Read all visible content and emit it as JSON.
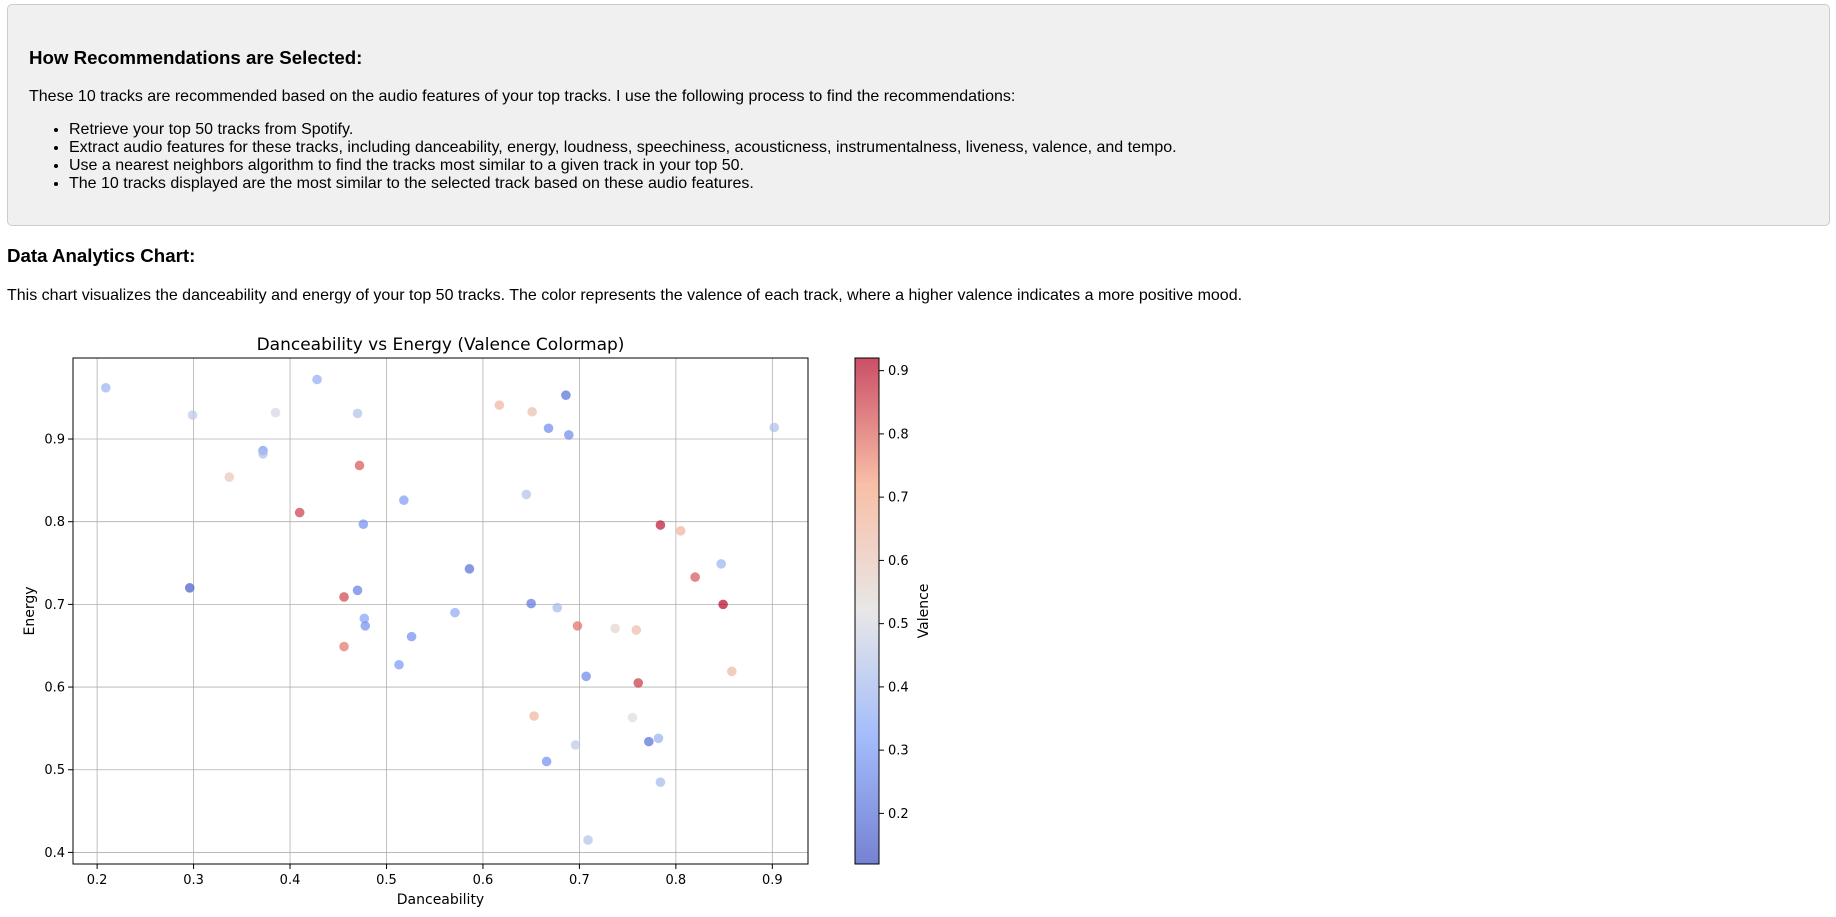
{
  "info": {
    "title": "How Recommendations are Selected:",
    "intro": "These 10 tracks are recommended based on the audio features of your top tracks. I use the following process to find the recommendations:",
    "steps": [
      "Retrieve your top 50 tracks from Spotify.",
      "Extract audio features for these tracks, including danceability, energy, loudness, speechiness, acousticness, instrumentalness, liveness, valence, and tempo.",
      "Use a nearest neighbors algorithm to find the tracks most similar to a given track in your top 50.",
      "The 10 tracks displayed are the most similar to the selected track based on these audio features."
    ]
  },
  "section": {
    "title": "Data Analytics Chart:",
    "description": "This chart visualizes the danceability and energy of your top 50 tracks. The color represents the valence of each track, where a higher valence indicates a more positive mood."
  },
  "chart_data": {
    "type": "scatter",
    "title": "Danceability vs Energy (Valence Colormap)",
    "xlabel": "Danceability",
    "ylabel": "Energy",
    "colorbar_label": "Valence",
    "colormap": "coolwarm",
    "xlim": [
      0.175,
      0.937
    ],
    "ylim": [
      0.386,
      0.998
    ],
    "clim": [
      0.12,
      0.92
    ],
    "grid": true,
    "xticks": [
      0.2,
      0.3,
      0.4,
      0.5,
      0.6,
      0.7,
      0.8,
      0.9
    ],
    "yticks": [
      0.4,
      0.5,
      0.6,
      0.7,
      0.8,
      0.9
    ],
    "cticks": [
      0.2,
      0.3,
      0.4,
      0.5,
      0.6,
      0.7,
      0.8,
      0.9
    ],
    "points": [
      {
        "x": 0.209,
        "y": 0.962,
        "valence": 0.38
      },
      {
        "x": 0.299,
        "y": 0.929,
        "valence": 0.45
      },
      {
        "x": 0.385,
        "y": 0.932,
        "valence": 0.5
      },
      {
        "x": 0.428,
        "y": 0.972,
        "valence": 0.36
      },
      {
        "x": 0.47,
        "y": 0.931,
        "valence": 0.43
      },
      {
        "x": 0.372,
        "y": 0.886,
        "valence": 0.3
      },
      {
        "x": 0.372,
        "y": 0.882,
        "valence": 0.42
      },
      {
        "x": 0.337,
        "y": 0.854,
        "valence": 0.6
      },
      {
        "x": 0.472,
        "y": 0.868,
        "valence": 0.82
      },
      {
        "x": 0.41,
        "y": 0.811,
        "valence": 0.85
      },
      {
        "x": 0.518,
        "y": 0.826,
        "valence": 0.31
      },
      {
        "x": 0.476,
        "y": 0.797,
        "valence": 0.28
      },
      {
        "x": 0.296,
        "y": 0.72,
        "valence": 0.15
      },
      {
        "x": 0.47,
        "y": 0.717,
        "valence": 0.24
      },
      {
        "x": 0.456,
        "y": 0.709,
        "valence": 0.84
      },
      {
        "x": 0.477,
        "y": 0.683,
        "valence": 0.33
      },
      {
        "x": 0.478,
        "y": 0.674,
        "valence": 0.28
      },
      {
        "x": 0.456,
        "y": 0.649,
        "valence": 0.78
      },
      {
        "x": 0.526,
        "y": 0.661,
        "valence": 0.28
      },
      {
        "x": 0.513,
        "y": 0.627,
        "valence": 0.3
      },
      {
        "x": 0.586,
        "y": 0.743,
        "valence": 0.2
      },
      {
        "x": 0.571,
        "y": 0.69,
        "valence": 0.35
      },
      {
        "x": 0.617,
        "y": 0.941,
        "valence": 0.66
      },
      {
        "x": 0.651,
        "y": 0.933,
        "valence": 0.63
      },
      {
        "x": 0.686,
        "y": 0.953,
        "valence": 0.2
      },
      {
        "x": 0.668,
        "y": 0.913,
        "valence": 0.27
      },
      {
        "x": 0.689,
        "y": 0.905,
        "valence": 0.27
      },
      {
        "x": 0.645,
        "y": 0.833,
        "valence": 0.43
      },
      {
        "x": 0.65,
        "y": 0.701,
        "valence": 0.22
      },
      {
        "x": 0.677,
        "y": 0.696,
        "valence": 0.4
      },
      {
        "x": 0.698,
        "y": 0.674,
        "valence": 0.79
      },
      {
        "x": 0.737,
        "y": 0.671,
        "valence": 0.55
      },
      {
        "x": 0.759,
        "y": 0.669,
        "valence": 0.64
      },
      {
        "x": 0.707,
        "y": 0.613,
        "valence": 0.26
      },
      {
        "x": 0.761,
        "y": 0.605,
        "valence": 0.86
      },
      {
        "x": 0.653,
        "y": 0.565,
        "valence": 0.66
      },
      {
        "x": 0.755,
        "y": 0.563,
        "valence": 0.52
      },
      {
        "x": 0.696,
        "y": 0.53,
        "valence": 0.45
      },
      {
        "x": 0.772,
        "y": 0.534,
        "valence": 0.2
      },
      {
        "x": 0.782,
        "y": 0.538,
        "valence": 0.37
      },
      {
        "x": 0.666,
        "y": 0.51,
        "valence": 0.28
      },
      {
        "x": 0.784,
        "y": 0.485,
        "valence": 0.4
      },
      {
        "x": 0.709,
        "y": 0.415,
        "valence": 0.43
      },
      {
        "x": 0.784,
        "y": 0.796,
        "valence": 0.9
      },
      {
        "x": 0.805,
        "y": 0.789,
        "valence": 0.67
      },
      {
        "x": 0.82,
        "y": 0.733,
        "valence": 0.82
      },
      {
        "x": 0.847,
        "y": 0.749,
        "valence": 0.38
      },
      {
        "x": 0.849,
        "y": 0.7,
        "valence": 0.92
      },
      {
        "x": 0.858,
        "y": 0.619,
        "valence": 0.65
      },
      {
        "x": 0.902,
        "y": 0.914,
        "valence": 0.42
      }
    ]
  }
}
